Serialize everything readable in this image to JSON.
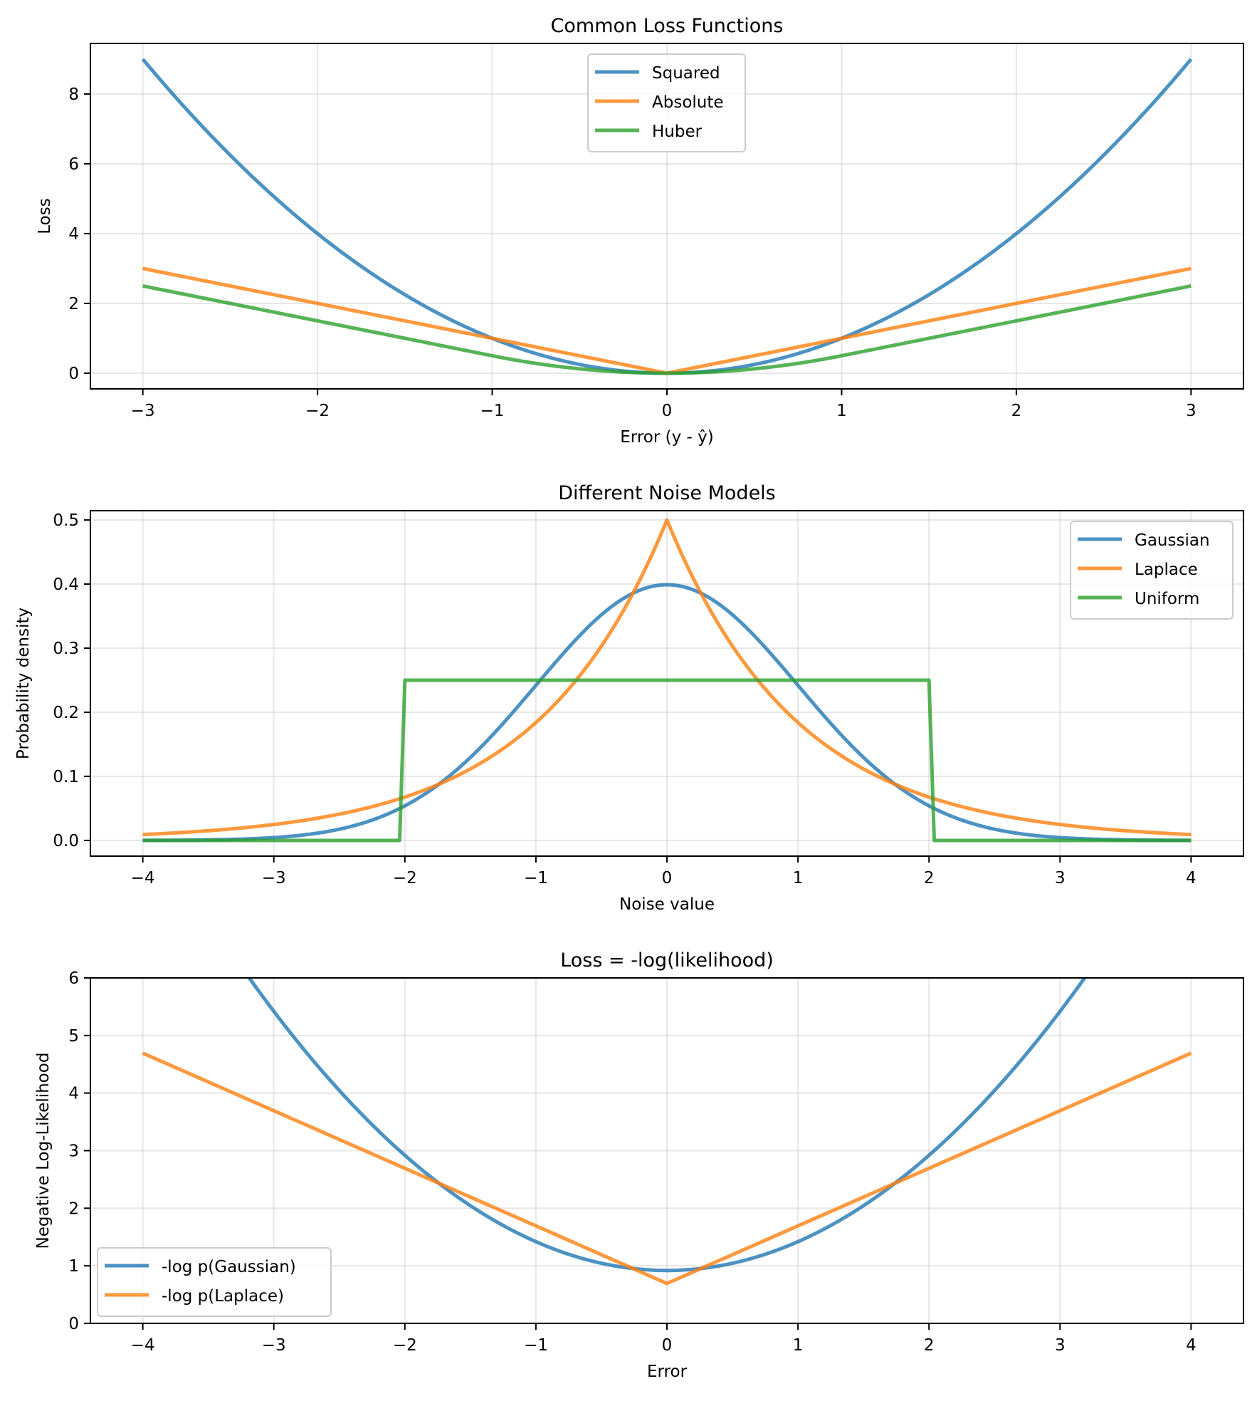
{
  "chart_data": [
    {
      "type": "line",
      "title": "Common Loss Functions",
      "xlabel": "Error (y - ŷ)",
      "ylabel": "Loss",
      "xlim": [
        -3.3,
        3.3
      ],
      "ylim": [
        -0.45,
        9.45
      ],
      "xticks": [
        -3,
        -2,
        -1,
        0,
        1,
        2,
        3
      ],
      "xtick_labels": [
        "−3",
        "−2",
        "−1",
        "0",
        "1",
        "2",
        "3"
      ],
      "yticks": [
        0,
        2,
        4,
        6,
        8
      ],
      "ytick_labels": [
        "0",
        "2",
        "4",
        "6",
        "8"
      ],
      "grid": true,
      "legend_position": "upper-center",
      "x_range": [
        -3,
        3
      ],
      "series": [
        {
          "name": "Squared",
          "color": "#1f77b4",
          "function": "x^2",
          "samples": {
            "x": [
              -3,
              -2,
              -1,
              0,
              1,
              2,
              3
            ],
            "y": [
              9,
              4,
              1,
              0,
              1,
              4,
              9
            ]
          }
        },
        {
          "name": "Absolute",
          "color": "#ff7f0e",
          "function": "|x|",
          "samples": {
            "x": [
              -3,
              -2,
              -1,
              0,
              1,
              2,
              3
            ],
            "y": [
              3,
              2,
              1,
              0,
              1,
              2,
              3
            ]
          }
        },
        {
          "name": "Huber",
          "color": "#2ca02c",
          "function": "huber(delta=1)",
          "samples": {
            "x": [
              -3,
              -2,
              -1,
              0,
              1,
              2,
              3
            ],
            "y": [
              2.5,
              1.5,
              0.5,
              0,
              0.5,
              1.5,
              2.5
            ]
          }
        }
      ]
    },
    {
      "type": "line",
      "title": "Different Noise Models",
      "xlabel": "Noise value",
      "ylabel": "Probability density",
      "xlim": [
        -4.4,
        4.4
      ],
      "ylim": [
        -0.0245,
        0.5145
      ],
      "xticks": [
        -4,
        -3,
        -2,
        -1,
        0,
        1,
        2,
        3,
        4
      ],
      "xtick_labels": [
        "−4",
        "−3",
        "−2",
        "−1",
        "0",
        "1",
        "2",
        "3",
        "4"
      ],
      "yticks": [
        0.0,
        0.1,
        0.2,
        0.3,
        0.4,
        0.5
      ],
      "ytick_labels": [
        "0.0",
        "0.1",
        "0.2",
        "0.3",
        "0.4",
        "0.5"
      ],
      "grid": true,
      "legend_position": "upper-right",
      "x_range": [
        -4,
        4
      ],
      "series": [
        {
          "name": "Gaussian",
          "color": "#1f77b4",
          "function": "normal(0,1) pdf",
          "samples": {
            "x": [
              -4,
              -3,
              -2,
              -1,
              0,
              1,
              2,
              3,
              4
            ],
            "y": [
              0.0001,
              0.0044,
              0.054,
              0.242,
              0.399,
              0.242,
              0.054,
              0.0044,
              0.0001
            ]
          }
        },
        {
          "name": "Laplace",
          "color": "#ff7f0e",
          "function": "laplace(0,1) pdf",
          "samples": {
            "x": [
              -4,
              -3,
              -2,
              -1,
              0,
              1,
              2,
              3,
              4
            ],
            "y": [
              0.009,
              0.025,
              0.068,
              0.184,
              0.49,
              0.184,
              0.068,
              0.025,
              0.009
            ]
          }
        },
        {
          "name": "Uniform",
          "color": "#2ca02c",
          "function": "uniform(-2,2) pdf",
          "samples": {
            "x": [
              -4,
              -2.04,
              -2,
              2,
              2.04,
              4
            ],
            "y": [
              0,
              0,
              0.25,
              0.25,
              0,
              0
            ]
          }
        }
      ]
    },
    {
      "type": "line",
      "title": "Loss = -log(likelihood)",
      "xlabel": "Error",
      "ylabel": "Negative Log-Likelihood",
      "xlim": [
        -4.4,
        4.4
      ],
      "ylim": [
        0,
        6
      ],
      "xticks": [
        -4,
        -3,
        -2,
        -1,
        0,
        1,
        2,
        3,
        4
      ],
      "xtick_labels": [
        "−4",
        "−3",
        "−2",
        "−1",
        "0",
        "1",
        "2",
        "3",
        "4"
      ],
      "yticks": [
        0,
        1,
        2,
        3,
        4,
        5,
        6
      ],
      "ytick_labels": [
        "0",
        "1",
        "2",
        "3",
        "4",
        "5",
        "6"
      ],
      "grid": true,
      "legend_position": "lower-left",
      "x_range": [
        -4,
        4
      ],
      "series": [
        {
          "name": "-log p(Gaussian)",
          "color": "#1f77b4",
          "function": "0.5*x^2 + 0.919",
          "samples": {
            "x": [
              -3,
              -2,
              -1,
              0,
              1,
              2,
              3
            ],
            "y": [
              5.42,
              2.92,
              1.42,
              0.92,
              1.42,
              2.92,
              5.42
            ]
          }
        },
        {
          "name": "-log p(Laplace)",
          "color": "#ff7f0e",
          "function": "|x| + 0.693",
          "samples": {
            "x": [
              -4,
              -2,
              0,
              2,
              4
            ],
            "y": [
              4.69,
              2.69,
              0.69,
              2.69,
              4.69
            ]
          }
        }
      ]
    }
  ]
}
